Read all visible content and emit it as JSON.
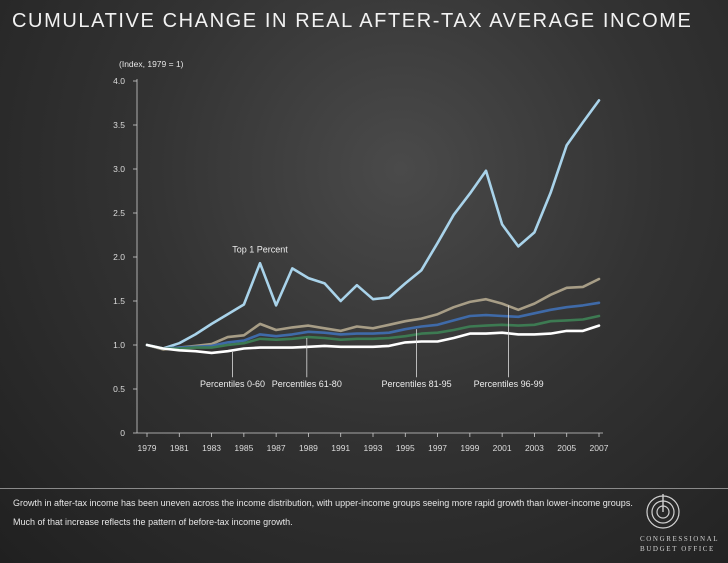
{
  "title": "CUMULATIVE CHANGE IN REAL AFTER-TAX AVERAGE INCOME",
  "caption": "Growth in after-tax income has been uneven across the income distribution, with upper-income groups seeing more rapid growth than lower-income groups. Much of that increase reflects the pattern of before-tax income growth.",
  "logo": {
    "line1": "Congressional",
    "line2": "Budget Office"
  },
  "chart_data": {
    "type": "line",
    "title": "CUMULATIVE CHANGE IN REAL AFTER-TAX AVERAGE INCOME",
    "ylabel": "(Index, 1979 = 1)",
    "xlabel": "",
    "xlim": [
      1979,
      2007
    ],
    "ylim": [
      0,
      4.0
    ],
    "yticks": [
      0,
      0.5,
      1.0,
      1.5,
      2.0,
      2.5,
      3.0,
      3.5,
      4.0
    ],
    "ytick_labels": [
      "0",
      "0.5",
      "1.0",
      "1.5",
      "2.0",
      "2.5",
      "3.0",
      "3.5",
      "4.0"
    ],
    "xticks": [
      1979,
      1981,
      1983,
      1985,
      1987,
      1989,
      1991,
      1993,
      1995,
      1997,
      1999,
      2001,
      2003,
      2005,
      2007
    ],
    "xtick_labels": [
      "1979",
      "1981",
      "1983",
      "1985",
      "1987",
      "1989",
      "1991",
      "1993",
      "1995",
      "1997",
      "1999",
      "2001",
      "2003",
      "2005",
      "2007"
    ],
    "x": [
      1979,
      1980,
      1981,
      1982,
      1983,
      1984,
      1985,
      1986,
      1987,
      1988,
      1989,
      1990,
      1991,
      1992,
      1993,
      1994,
      1995,
      1996,
      1997,
      1998,
      1999,
      2000,
      2001,
      2002,
      2003,
      2004,
      2005,
      2006,
      2007
    ],
    "series": [
      {
        "name": "Top 1 Percent",
        "color": "#a9d3ea",
        "width": 2.6,
        "values": [
          1.0,
          0.96,
          1.02,
          1.12,
          1.24,
          1.35,
          1.46,
          1.93,
          1.45,
          1.87,
          1.76,
          1.7,
          1.5,
          1.68,
          1.52,
          1.54,
          1.7,
          1.85,
          2.16,
          2.48,
          2.72,
          2.98,
          2.37,
          2.12,
          2.28,
          2.73,
          3.27,
          3.53,
          3.78
        ]
      },
      {
        "name": "Percentiles 96-99",
        "color": "#a79d86",
        "width": 2.6,
        "values": [
          1.0,
          0.95,
          0.97,
          0.99,
          1.01,
          1.09,
          1.11,
          1.24,
          1.17,
          1.2,
          1.22,
          1.19,
          1.16,
          1.21,
          1.19,
          1.23,
          1.27,
          1.3,
          1.35,
          1.43,
          1.49,
          1.52,
          1.47,
          1.4,
          1.47,
          1.57,
          1.65,
          1.66,
          1.75
        ]
      },
      {
        "name": "Percentiles 81-95",
        "color": "#3f6aa8",
        "width": 2.6,
        "values": [
          1.0,
          0.96,
          0.97,
          0.98,
          0.99,
          1.03,
          1.05,
          1.12,
          1.1,
          1.12,
          1.15,
          1.14,
          1.12,
          1.13,
          1.13,
          1.14,
          1.18,
          1.21,
          1.23,
          1.28,
          1.33,
          1.34,
          1.33,
          1.32,
          1.36,
          1.4,
          1.43,
          1.45,
          1.48
        ]
      },
      {
        "name": "Percentiles 61-80",
        "color": "#3d7a52",
        "width": 2.6,
        "values": [
          1.0,
          0.96,
          0.96,
          0.97,
          0.97,
          1.0,
          1.02,
          1.07,
          1.06,
          1.07,
          1.09,
          1.08,
          1.06,
          1.07,
          1.07,
          1.08,
          1.1,
          1.13,
          1.14,
          1.17,
          1.21,
          1.22,
          1.23,
          1.22,
          1.23,
          1.27,
          1.28,
          1.29,
          1.33
        ]
      },
      {
        "name": "Percentiles 0-60",
        "color": "#ffffff",
        "width": 2.6,
        "values": [
          1.0,
          0.96,
          0.94,
          0.93,
          0.91,
          0.93,
          0.96,
          0.97,
          0.97,
          0.97,
          0.98,
          0.99,
          0.98,
          0.98,
          0.98,
          0.99,
          1.03,
          1.04,
          1.04,
          1.08,
          1.13,
          1.13,
          1.14,
          1.12,
          1.12,
          1.13,
          1.16,
          1.16,
          1.22
        ]
      }
    ],
    "annotations": [
      {
        "text": "Top 1 Percent",
        "series": "Top 1 Percent",
        "x": 1986,
        "y": 2.05,
        "leader": false
      },
      {
        "text": "Percentiles 0-60",
        "series": "Percentiles 0-60",
        "x": 1984.3,
        "y": 0.52,
        "leader_x": 1984.3,
        "leader_y": 0.92
      },
      {
        "text": "Percentiles 61-80",
        "series": "Percentiles 61-80",
        "x": 1988.9,
        "y": 0.52,
        "leader_x": 1988.9,
        "leader_y": 1.08
      },
      {
        "text": "Percentiles 81-95",
        "series": "Percentiles 81-95",
        "x": 1995.7,
        "y": 0.52,
        "leader_x": 1995.7,
        "leader_y": 1.18
      },
      {
        "text": "Percentiles 96-99",
        "series": "Percentiles 96-99",
        "x": 2001.4,
        "y": 0.52,
        "leader_x": 2001.4,
        "leader_y": 1.45
      }
    ]
  }
}
